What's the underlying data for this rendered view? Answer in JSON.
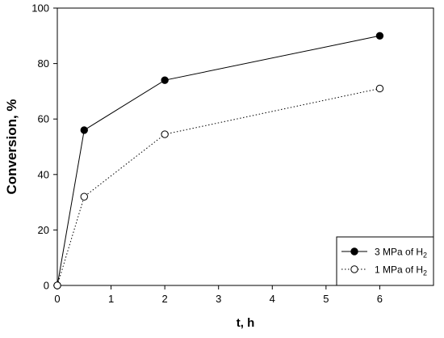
{
  "chart_data": {
    "type": "line",
    "xlabel": "t, h",
    "ylabel": "Conversion, %",
    "xlim": [
      0,
      7
    ],
    "ylim": [
      0,
      100
    ],
    "x_ticks": [
      "0",
      "1",
      "2",
      "3",
      "4",
      "5",
      "6"
    ],
    "y_ticks": [
      "0",
      "20",
      "40",
      "60",
      "80",
      "100"
    ],
    "grid": false,
    "legend_position": "bottom-right",
    "series": [
      {
        "name": "3 MPa of H2",
        "name_prefix": "3 MPa of H",
        "name_subscript": "2",
        "marker": "filled-circle",
        "line_style": "solid",
        "x": [
          0,
          0.5,
          2,
          6
        ],
        "y": [
          0,
          56,
          74,
          90
        ]
      },
      {
        "name": "1 MPa of H2",
        "name_prefix": "1 MPa of H",
        "name_subscript": "2",
        "marker": "open-circle",
        "line_style": "dotted",
        "x": [
          0,
          0.5,
          2,
          6
        ],
        "y": [
          0,
          32,
          54.5,
          71
        ]
      }
    ]
  }
}
